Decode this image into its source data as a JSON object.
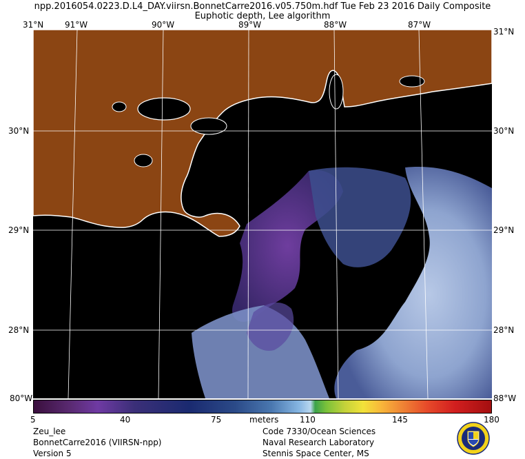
{
  "header": {
    "line1": "npp.2016054.0223.D.L4_DAY.viirsn.BonnetCarre2016.v05.750m.hdf    Tue Feb 23 2016 Daily Composite",
    "line2": "Euphotic depth, Lee algorithm"
  },
  "axes": {
    "top_lon": [
      "91°W",
      "90°W",
      "89°W",
      "88°W",
      "87°W"
    ],
    "lat": [
      "30°N",
      "29°N",
      "28°N"
    ],
    "corner_tl": "31°N",
    "corner_tr": "31°N",
    "corner_bl": "80°W",
    "corner_br": "88°W"
  },
  "colorbar": {
    "unit": "meters",
    "ticks": [
      "5",
      "40",
      "75",
      "110",
      "145",
      "180"
    ]
  },
  "footer": {
    "left": [
      "Zeu_lee",
      "BonnetCarre2016 (VIIRSN-npp)",
      "Version 5"
    ],
    "right": [
      "Code 7330/Ocean Sciences",
      "Naval Research Laboratory",
      "Stennis Space Center, MS"
    ]
  },
  "colors": {
    "land": "#8b4513",
    "coast": "#ffffff",
    "no_data": "#000000",
    "low_depth": "#6f3aa3",
    "mid_depth": "#4a78b0",
    "high_depth": "#9fb2d6"
  }
}
